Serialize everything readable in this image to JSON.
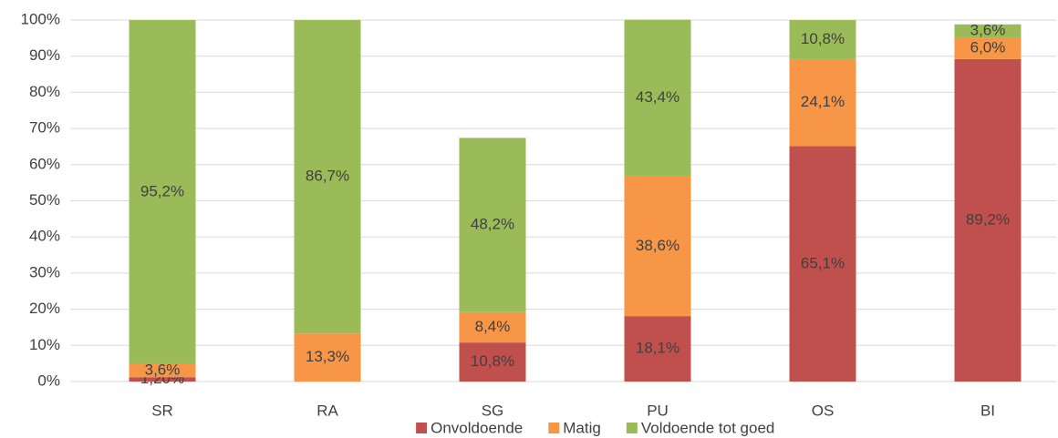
{
  "chart_data": {
    "type": "stacked_bar",
    "categories": [
      "SR",
      "RA",
      "SG",
      "PU",
      "OS",
      "BI"
    ],
    "series": [
      {
        "name": "Onvoldoende",
        "color": "#c0504d",
        "values": [
          1.2,
          0,
          10.8,
          18.1,
          65.1,
          89.2
        ],
        "value_labels": [
          "1,20%",
          null,
          "10,8%",
          "18,1%",
          "65,1%",
          "89,2%"
        ]
      },
      {
        "name": "Matig",
        "color": "#f79646",
        "values": [
          3.6,
          13.3,
          8.4,
          38.6,
          24.1,
          6.0
        ],
        "value_labels": [
          "3,6%",
          "13,3%",
          "8,4%",
          "38,6%",
          "24,1%",
          "6,0%"
        ]
      },
      {
        "name": "Voldoende tot goed",
        "color": "#9bbb59",
        "values": [
          95.2,
          86.7,
          48.2,
          43.4,
          10.8,
          3.6
        ],
        "value_labels": [
          "95,2%",
          "86,7%",
          "48,2%",
          "43,4%",
          "10,8%",
          "3,6%"
        ]
      }
    ],
    "ylim": [
      0,
      100
    ],
    "yticks": [
      {
        "value": 0,
        "label": "0%"
      },
      {
        "value": 10,
        "label": "10%"
      },
      {
        "value": 20,
        "label": "20%"
      },
      {
        "value": 30,
        "label": "30%"
      },
      {
        "value": 40,
        "label": "40%"
      },
      {
        "value": 50,
        "label": "50%"
      },
      {
        "value": 60,
        "label": "60%"
      },
      {
        "value": 70,
        "label": "70%"
      },
      {
        "value": 80,
        "label": "80%"
      },
      {
        "value": 90,
        "label": "90%"
      },
      {
        "value": 100,
        "label": "100%"
      }
    ],
    "grid": true,
    "legend": "bottom"
  }
}
